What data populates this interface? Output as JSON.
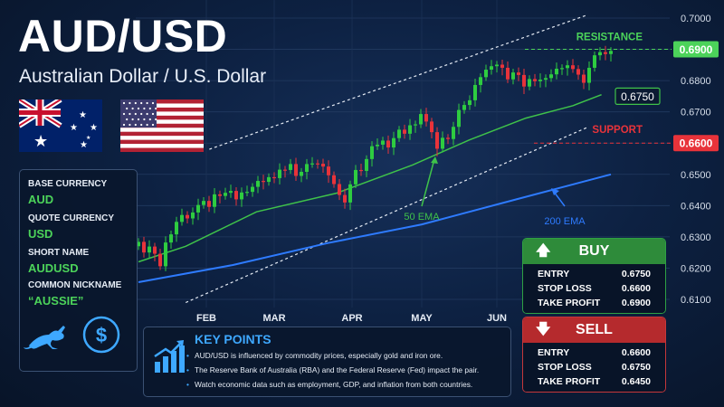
{
  "header": {
    "title": "AUD/USD",
    "subtitle": "Australian Dollar / U.S. Dollar"
  },
  "flags": {
    "left": "Australia flag",
    "right": "United States flag"
  },
  "info_box": {
    "items": [
      {
        "label": "BASE CURRENCY",
        "value": "AUD"
      },
      {
        "label": "QUOTE CURRENCY",
        "value": "USD"
      },
      {
        "label": "SHORT NAME",
        "value": "AUDUSD"
      },
      {
        "label": "COMMON NICKNAME",
        "value": "“AUSSIE”"
      }
    ],
    "icons": [
      "kangaroo-icon",
      "dollar-coin-icon"
    ]
  },
  "key_points": {
    "title": "KEY POINTS",
    "icon": "growth-chart-icon",
    "items": [
      "AUD/USD is influenced by commodity prices, especially gold and iron ore.",
      "The Reserve Bank of Australia (RBA) and the Federal Reserve (Fed) impact the pair.",
      "Watch economic data such as employment, GDP, and inflation from both countries."
    ]
  },
  "buy_panel": {
    "title": "BUY",
    "rows": [
      {
        "label": "ENTRY",
        "value": "0.6750"
      },
      {
        "label": "STOP LOSS",
        "value": "0.6600"
      },
      {
        "label": "TAKE PROFIT",
        "value": "0.6900"
      }
    ],
    "color": "#2e8b3a"
  },
  "sell_panel": {
    "title": "SELL",
    "rows": [
      {
        "label": "ENTRY",
        "value": "0.6600"
      },
      {
        "label": "STOP LOSS",
        "value": "0.6750"
      },
      {
        "label": "TAKE PROFIT",
        "value": "0.6450"
      }
    ],
    "color": "#b52a2d"
  },
  "chart_data": {
    "type": "candlestick",
    "x_ticks": [
      "FEB",
      "MAR",
      "APR",
      "MAY",
      "JUN"
    ],
    "y_ticks": [
      "0.7000",
      "0.6900",
      "0.6800",
      "0.6700",
      "0.6600",
      "0.6500",
      "0.6400",
      "0.6300",
      "0.6200",
      "0.6100"
    ],
    "ylim": [
      0.608,
      0.706
    ],
    "grid": true,
    "colors": {
      "up": "#2ecc40",
      "down": "#e8333a",
      "ema50": "#3fc24a",
      "ema200": "#2e7bff",
      "resistance": "#4cd35a",
      "support": "#e8333a"
    },
    "levels": [
      {
        "label": "RESISTANCE",
        "value": 0.69,
        "tag": "0.6900",
        "color": "#4cd35a"
      },
      {
        "label": "SUPPORT",
        "value": 0.66,
        "tag": "0.6600",
        "color": "#e8333a"
      }
    ],
    "ema_tag": {
      "value": 0.675,
      "tag": "0.6750"
    },
    "annotations": [
      {
        "text": "50 EMA"
      },
      {
        "text": "200 EMA"
      }
    ],
    "candles_close": [
      0.6284,
      0.625,
      0.6269,
      0.6246,
      0.6206,
      0.6282,
      0.6308,
      0.6348,
      0.637,
      0.6359,
      0.6378,
      0.6402,
      0.6415,
      0.6396,
      0.6436,
      0.6431,
      0.6441,
      0.6447,
      0.642,
      0.6442,
      0.6444,
      0.646,
      0.6479,
      0.6476,
      0.6491,
      0.6488,
      0.6515,
      0.6514,
      0.6533,
      0.6495,
      0.6508,
      0.6533,
      0.6535,
      0.6534,
      0.6525,
      0.6497,
      0.6469,
      0.6434,
      0.641,
      0.6468,
      0.6514,
      0.6511,
      0.6549,
      0.659,
      0.6595,
      0.6608,
      0.6586,
      0.6616,
      0.6643,
      0.663,
      0.6657,
      0.666,
      0.6693,
      0.6669,
      0.6635,
      0.6582,
      0.6617,
      0.6613,
      0.6652,
      0.6706,
      0.6722,
      0.6737,
      0.6786,
      0.6811,
      0.6835,
      0.6846,
      0.6851,
      0.6841,
      0.6804,
      0.6826,
      0.6818,
      0.6781,
      0.6805,
      0.6798,
      0.6803,
      0.6808,
      0.682,
      0.6838,
      0.684,
      0.6849,
      0.6837,
      0.6819,
      0.6793,
      0.6841,
      0.6881,
      0.6891,
      0.6885,
      0.6895
    ],
    "ema50": [
      [
        0.622,
        0.632
      ],
      [
        0.266,
        0.639
      ],
      [
        0.38,
        0.642
      ],
      [
        0.5,
        0.652
      ],
      [
        0.66,
        0.662
      ],
      [
        0.82,
        0.67
      ],
      [
        0.97,
        0.675
      ]
    ],
    "ema200": [
      [
        0.0,
        0.615
      ],
      [
        0.25,
        0.625
      ],
      [
        0.5,
        0.633
      ],
      [
        0.75,
        0.643
      ],
      [
        1.0,
        0.65
      ]
    ],
    "channel_upper": [
      [
        0.0,
        0.65
      ],
      [
        1.0,
        0.7
      ]
    ],
    "channel_lower": [
      [
        0.0,
        0.609
      ],
      [
        1.0,
        0.665
      ]
    ]
  }
}
